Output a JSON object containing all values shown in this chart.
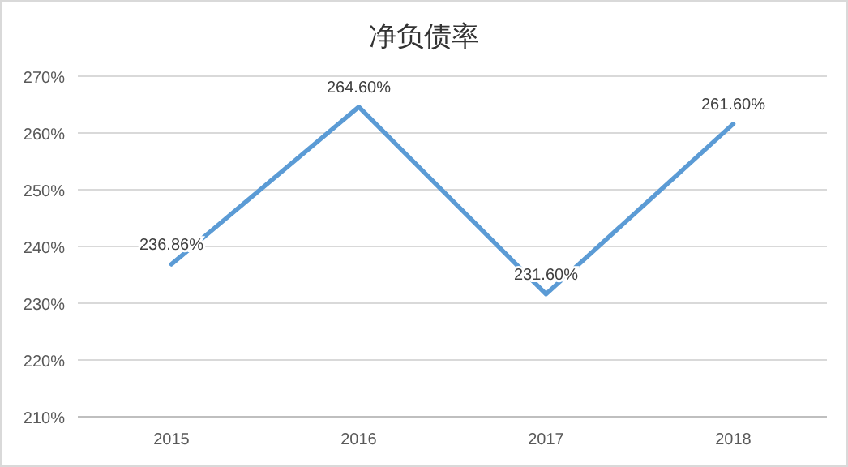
{
  "chart_data": {
    "type": "line",
    "title": "净负债率",
    "categories": [
      "2015",
      "2016",
      "2017",
      "2018"
    ],
    "series": [
      {
        "color": "#5b9bd5",
        "values": [
          236.86,
          264.6,
          231.6,
          261.6
        ],
        "value_labels": [
          "236.86%",
          "264.60%",
          "231.60%",
          "261.60%"
        ]
      }
    ],
    "ylim": [
      210,
      270
    ],
    "yticks": [
      {
        "value": 210,
        "label": "210%"
      },
      {
        "value": 220,
        "label": "220%"
      },
      {
        "value": 230,
        "label": "230%"
      },
      {
        "value": 240,
        "label": "240%"
      },
      {
        "value": 250,
        "label": "250%"
      },
      {
        "value": 260,
        "label": "260%"
      },
      {
        "value": 270,
        "label": "270%"
      }
    ],
    "grid": "y",
    "marker": "none",
    "line_style": "solid"
  }
}
